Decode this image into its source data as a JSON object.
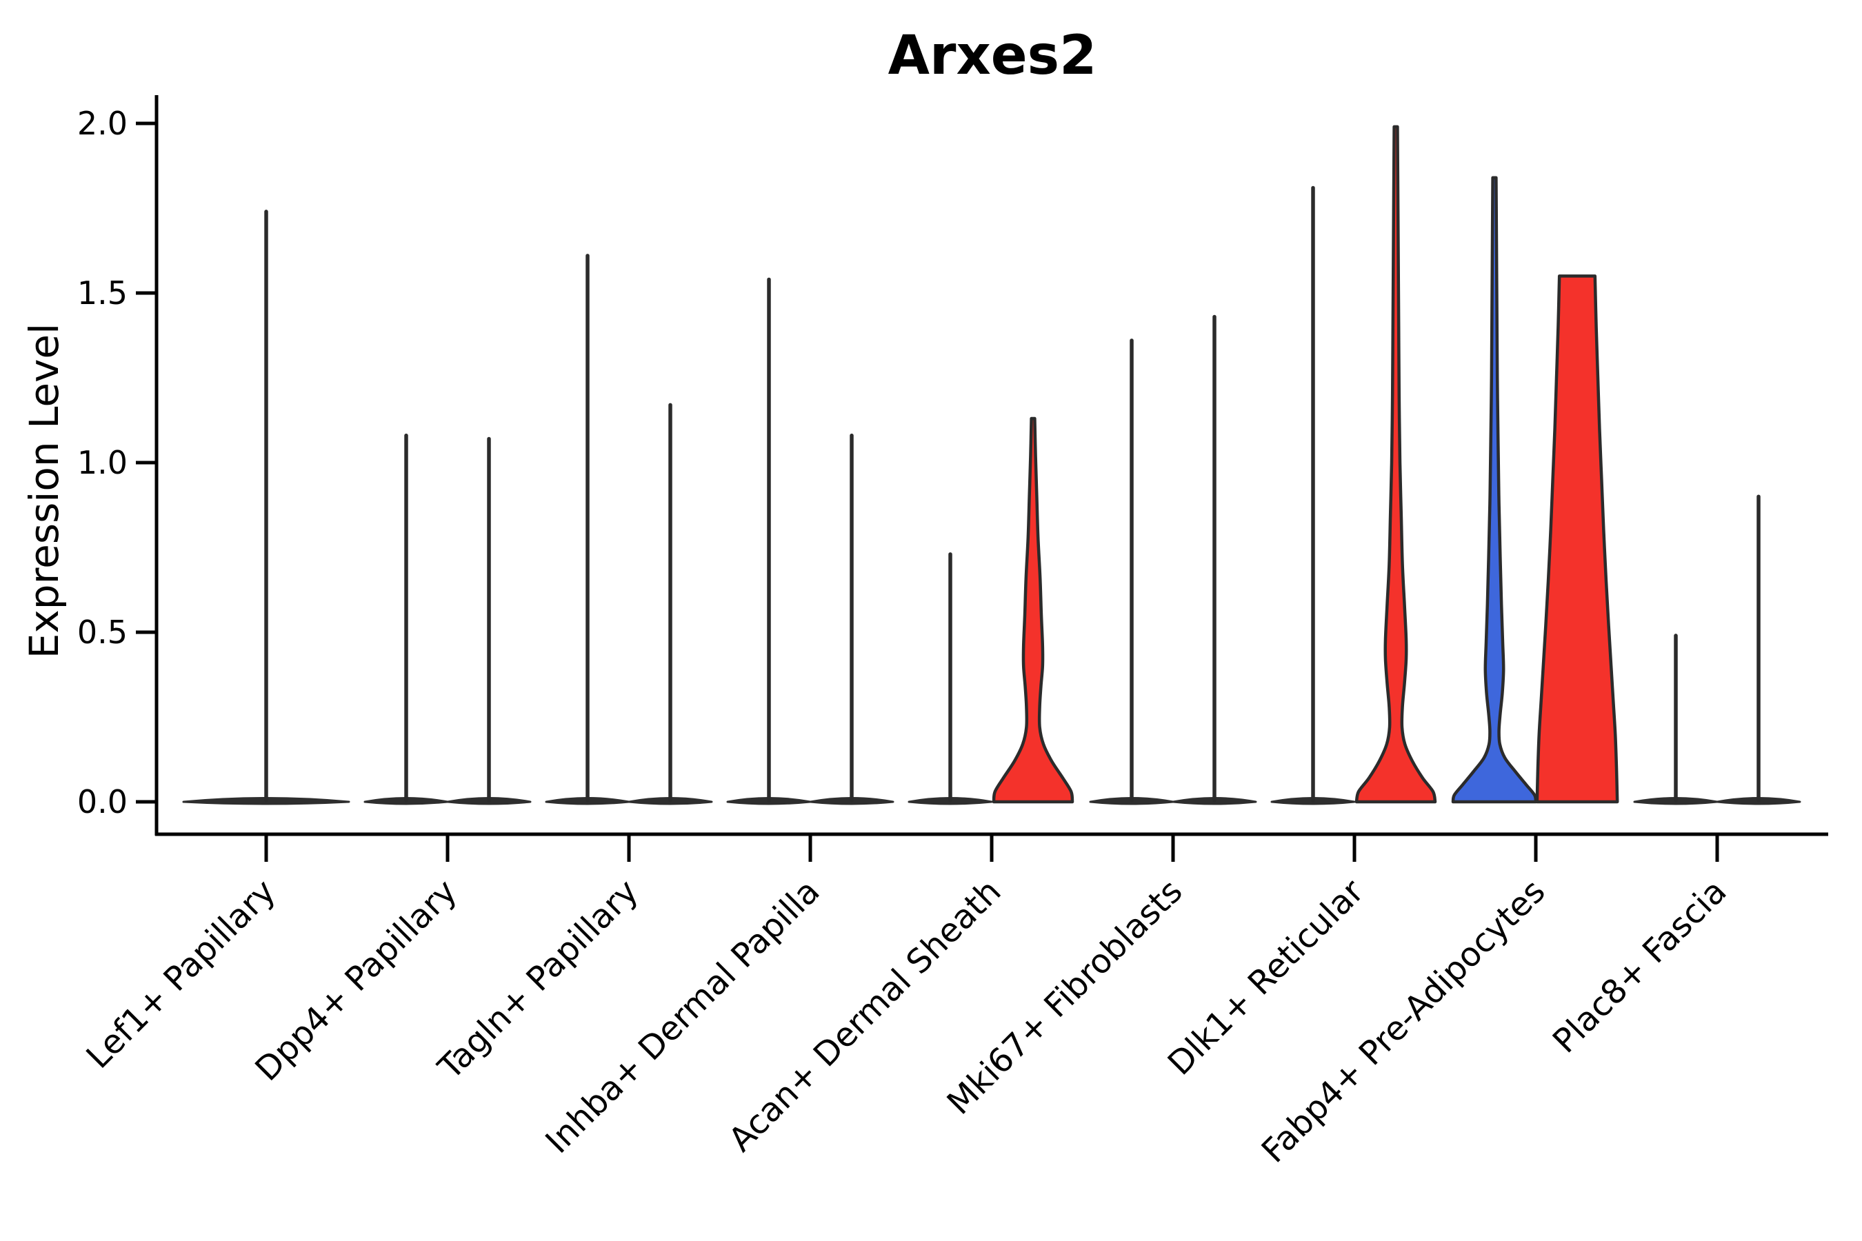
{
  "title": "Arxes2",
  "chart_data": {
    "type": "violin",
    "title": "Arxes2",
    "xlabel": "",
    "ylabel": "Expression Level",
    "ylim": [
      0,
      2.08
    ],
    "yticks": [
      0.0,
      0.5,
      1.0,
      1.5,
      2.0
    ],
    "ytick_labels": [
      "0.0",
      "0.5",
      "1.0",
      "1.5",
      "2.0"
    ],
    "grid": false,
    "legend": "none",
    "background": "#ffffff",
    "categories": [
      "Lef1+ Papillary",
      "Dpp4+ Papillary",
      "Tagln+ Papillary",
      "Inhba+ Dermal Papilla",
      "Acan+ Dermal Sheath",
      "Mki67+ Fibroblasts",
      "Dlk1+ Reticular",
      "Fabp4+ Pre-Adipocytes",
      "Plac8+ Fascia"
    ],
    "violin_groups": [
      {
        "category": "Lef1+ Papillary",
        "violins": [
          {
            "side": "single",
            "shape": "spike",
            "max": 1.74,
            "color": "#2B2B2B",
            "base_rel_halfwidth": 2.0
          }
        ]
      },
      {
        "category": "Dpp4+ Papillary",
        "violins": [
          {
            "side": "left",
            "shape": "spike",
            "max": 1.08,
            "color": "#2B2B2B",
            "base_rel_halfwidth": 1.0
          },
          {
            "side": "right",
            "shape": "spike",
            "max": 1.07,
            "color": "#2B2B2B",
            "base_rel_halfwidth": 1.0
          }
        ]
      },
      {
        "category": "Tagln+ Papillary",
        "violins": [
          {
            "side": "left",
            "shape": "spike",
            "max": 1.61,
            "color": "#2B2B2B",
            "base_rel_halfwidth": 1.0
          },
          {
            "side": "right",
            "shape": "spike",
            "max": 1.17,
            "color": "#2B2B2B",
            "base_rel_halfwidth": 1.0
          }
        ]
      },
      {
        "category": "Inhba+ Dermal Papilla",
        "violins": [
          {
            "side": "left",
            "shape": "spike",
            "max": 1.54,
            "color": "#2B2B2B",
            "base_rel_halfwidth": 1.0
          },
          {
            "side": "right",
            "shape": "spike",
            "max": 1.08,
            "color": "#2B2B2B",
            "base_rel_halfwidth": 1.0
          }
        ]
      },
      {
        "category": "Acan+ Dermal Sheath",
        "violins": [
          {
            "side": "left",
            "shape": "spike",
            "max": 0.73,
            "color": "#2B2B2B",
            "base_rel_halfwidth": 1.0
          },
          {
            "side": "right",
            "shape": "density",
            "max": 1.13,
            "fill": "#F4322B",
            "flat_top": false,
            "profile": [
              [
                1.13,
                0.04
              ],
              [
                1.02,
                0.06
              ],
              [
                0.9,
                0.09
              ],
              [
                0.78,
                0.12
              ],
              [
                0.66,
                0.17
              ],
              [
                0.55,
                0.2
              ],
              [
                0.46,
                0.23
              ],
              [
                0.4,
                0.23
              ],
              [
                0.34,
                0.19
              ],
              [
                0.28,
                0.16
              ],
              [
                0.22,
                0.16
              ],
              [
                0.17,
                0.25
              ],
              [
                0.12,
                0.45
              ],
              [
                0.07,
                0.72
              ],
              [
                0.03,
                0.92
              ],
              [
                0.0,
                0.95
              ]
            ]
          }
        ]
      },
      {
        "category": "Mki67+ Fibroblasts",
        "violins": [
          {
            "side": "left",
            "shape": "spike",
            "max": 1.36,
            "color": "#2B2B2B",
            "base_rel_halfwidth": 1.0
          },
          {
            "side": "right",
            "shape": "spike",
            "max": 1.43,
            "color": "#2B2B2B",
            "base_rel_halfwidth": 1.0
          }
        ]
      },
      {
        "category": "Dlk1+ Reticular",
        "violins": [
          {
            "side": "left",
            "shape": "spike",
            "max": 1.81,
            "color": "#2B2B2B",
            "base_rel_halfwidth": 1.0
          },
          {
            "side": "right",
            "shape": "density",
            "max": 1.99,
            "fill": "#F4322B",
            "flat_top": false,
            "profile": [
              [
                1.99,
                0.04
              ],
              [
                1.8,
                0.05
              ],
              [
                1.6,
                0.06
              ],
              [
                1.4,
                0.07
              ],
              [
                1.2,
                0.08
              ],
              [
                1.0,
                0.1
              ],
              [
                0.85,
                0.13
              ],
              [
                0.7,
                0.16
              ],
              [
                0.58,
                0.21
              ],
              [
                0.48,
                0.25
              ],
              [
                0.42,
                0.25
              ],
              [
                0.35,
                0.21
              ],
              [
                0.28,
                0.16
              ],
              [
                0.22,
                0.15
              ],
              [
                0.17,
                0.22
              ],
              [
                0.12,
                0.4
              ],
              [
                0.07,
                0.65
              ],
              [
                0.03,
                0.9
              ],
              [
                0.0,
                0.95
              ]
            ]
          }
        ]
      },
      {
        "category": "Fabp4+ Pre-Adipocytes",
        "violins": [
          {
            "side": "left",
            "shape": "density",
            "max": 1.84,
            "fill": "#3E67DC",
            "flat_top": false,
            "profile": [
              [
                1.84,
                0.04
              ],
              [
                1.65,
                0.05
              ],
              [
                1.45,
                0.06
              ],
              [
                1.25,
                0.07
              ],
              [
                1.05,
                0.09
              ],
              [
                0.88,
                0.11
              ],
              [
                0.72,
                0.14
              ],
              [
                0.58,
                0.17
              ],
              [
                0.47,
                0.2
              ],
              [
                0.39,
                0.22
              ],
              [
                0.32,
                0.19
              ],
              [
                0.26,
                0.14
              ],
              [
                0.21,
                0.11
              ],
              [
                0.17,
                0.13
              ],
              [
                0.13,
                0.25
              ],
              [
                0.09,
                0.5
              ],
              [
                0.05,
                0.77
              ],
              [
                0.02,
                0.97
              ],
              [
                0.0,
                1.0
              ]
            ]
          },
          {
            "side": "right",
            "shape": "density",
            "max": 1.55,
            "fill": "#F4322B",
            "flat_top": true,
            "profile": [
              [
                1.55,
                0.43
              ],
              [
                1.4,
                0.46
              ],
              [
                1.25,
                0.5
              ],
              [
                1.1,
                0.54
              ],
              [
                0.95,
                0.59
              ],
              [
                0.8,
                0.64
              ],
              [
                0.65,
                0.7
              ],
              [
                0.52,
                0.76
              ],
              [
                0.4,
                0.82
              ],
              [
                0.3,
                0.87
              ],
              [
                0.2,
                0.92
              ],
              [
                0.1,
                0.95
              ],
              [
                0.0,
                0.97
              ]
            ]
          }
        ]
      },
      {
        "category": "Plac8+ Fascia",
        "violins": [
          {
            "side": "left",
            "shape": "spike",
            "max": 0.49,
            "color": "#2B2B2B",
            "base_rel_halfwidth": 1.0
          },
          {
            "side": "right",
            "shape": "spike",
            "max": 0.9,
            "color": "#2B2B2B",
            "base_rel_halfwidth": 1.0
          }
        ]
      }
    ]
  },
  "colors": {
    "red_fill": "#F4322B",
    "blue_fill": "#3E67DC",
    "outline": "#2B2B2B",
    "axis": "#000000",
    "background": "#ffffff"
  }
}
